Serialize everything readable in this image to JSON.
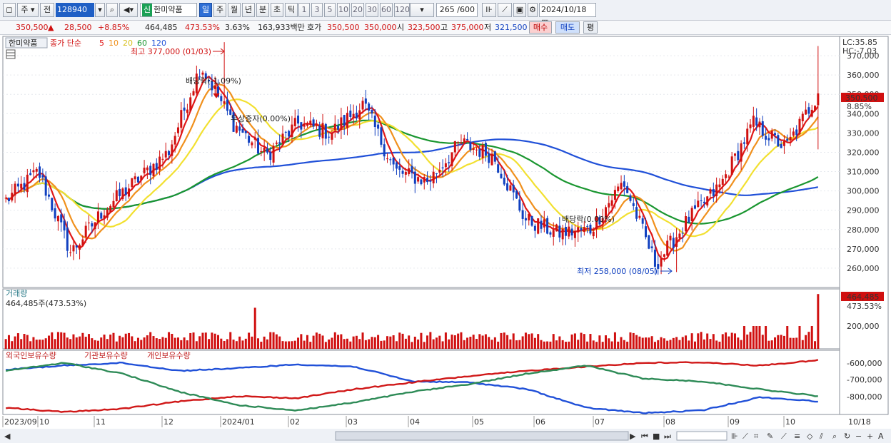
{
  "toolbar": {
    "period_label": "주",
    "compare_label": "전",
    "stock_code": "128940",
    "shin_badge": "신",
    "stock_name": "한미약품",
    "tf_buttons": [
      "일",
      "주",
      "월",
      "년",
      "분",
      "초",
      "틱"
    ],
    "num_buttons": [
      "1",
      "3",
      "5",
      "10",
      "20",
      "30",
      "60",
      "120"
    ],
    "bar_count": "265",
    "bar_total": "/600",
    "date": "2024/10/18"
  },
  "quote": {
    "price": "350,500",
    "change": "28,500",
    "change_pct": "+8.85%",
    "volume": "464,485",
    "volume_ratio": "473.53%",
    "turnover_pct": "3.63%",
    "amount": "163,933백만",
    "bid_label": "호가",
    "bid": "350,500",
    "ask": "350,000",
    "open_label": "시",
    "open": "323,500",
    "high_label": "고",
    "high": "375,000",
    "low_label": "저",
    "low": "321,500",
    "buy_label": "매수",
    "sell_label": "매도",
    "flat_label": "평"
  },
  "price_pane": {
    "legend_name": "한미약품",
    "legend_ma_title": "종가 단순",
    "ma_periods": [
      "5",
      "10",
      "20",
      "60",
      "120"
    ],
    "lc": "LC:35.85",
    "hc": "HC:-7.03",
    "annotations": {
      "high": "최고 377,000 (01/03)",
      "low": "최저 258,000 (08/05)",
      "div1": "배당락(-1.09%)",
      "div2": "배당락(0.00%)",
      "bonus": "무상증자(0.00%)"
    },
    "last_price_tag": "350,500",
    "last_pct_tag": "8.85%"
  },
  "volume_pane": {
    "title": "거래량",
    "value": "464,485주(473.53%)",
    "tag": "464,485",
    "tag_pct": "473.53%"
  },
  "holding_pane": {
    "legend": [
      "외국인보유수량",
      "기관보유수량",
      "개인보유수량"
    ],
    "axis": [
      "-600,000",
      "-700,000",
      "-800,000"
    ]
  },
  "colors": {
    "up": "#d01010",
    "down": "#1040c0",
    "ma5": "#e01818",
    "ma10": "#f0901c",
    "ma20": "#f2e030",
    "ma60": "#1a9630",
    "ma120": "#2050d8",
    "foreign": "#2050d8",
    "institution": "#d01818",
    "individual": "#2e8b57"
  },
  "chart_data": {
    "type": "candlestick",
    "y_ticks": [
      370000,
      360000,
      350000,
      340000,
      330000,
      320000,
      310000,
      300000,
      290000,
      280000,
      270000,
      260000
    ],
    "volume_ticks": [
      200000
    ],
    "x_labels": [
      "2023/09",
      "10",
      "11",
      "12",
      "2024/01",
      "02",
      "03",
      "04",
      "05",
      "06",
      "07",
      "08",
      "09",
      "10",
      "10/18"
    ],
    "close_path": [
      {
        "month": "2023/09",
        "price": 295000
      },
      {
        "month": "2023/10",
        "price": 310000
      },
      {
        "month": "2023/10",
        "price": 268000
      },
      {
        "month": "2023/11",
        "price": 290000
      },
      {
        "month": "2023/12",
        "price": 305000
      },
      {
        "month": "2023/12",
        "price": 320000
      },
      {
        "month": "2024/01",
        "price": 365000
      },
      {
        "month": "2024/01",
        "price": 335000
      },
      {
        "month": "2024/02",
        "price": 318000
      },
      {
        "month": "2024/02",
        "price": 335000
      },
      {
        "month": "2024/03",
        "price": 330000
      },
      {
        "month": "2024/03",
        "price": 345000
      },
      {
        "month": "2024/04",
        "price": 310000
      },
      {
        "month": "2024/04",
        "price": 305000
      },
      {
        "month": "2024/05",
        "price": 325000
      },
      {
        "month": "2024/05",
        "price": 318000
      },
      {
        "month": "2024/06",
        "price": 285000
      },
      {
        "month": "2024/06",
        "price": 278000
      },
      {
        "month": "2024/07",
        "price": 280000
      },
      {
        "month": "2024/07",
        "price": 305000
      },
      {
        "month": "2024/08",
        "price": 262000
      },
      {
        "month": "2024/08",
        "price": 285000
      },
      {
        "month": "2024/09",
        "price": 303000
      },
      {
        "month": "2024/09",
        "price": 335000
      },
      {
        "month": "2024/10",
        "price": 322000
      },
      {
        "month": "2024/10",
        "price": 350500
      }
    ],
    "high": {
      "value": 377000,
      "date": "01/03"
    },
    "low": {
      "value": 258000,
      "date": "08/05"
    }
  }
}
